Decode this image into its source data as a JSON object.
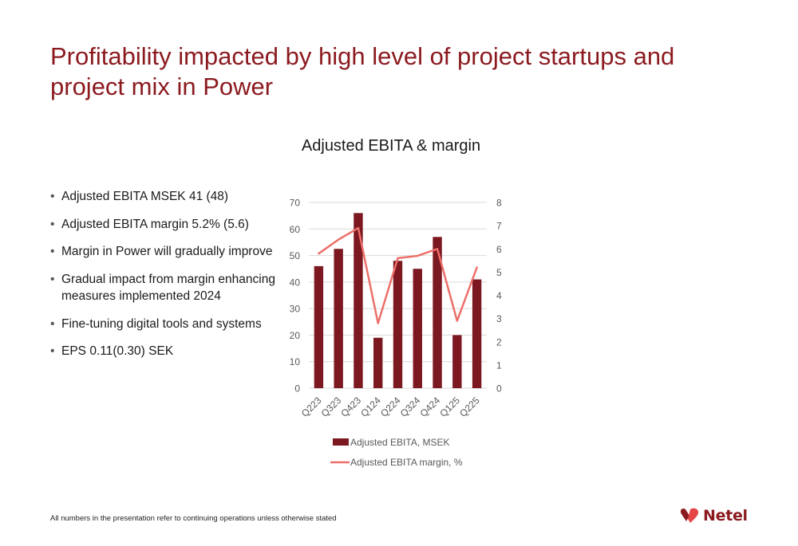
{
  "title": "Profitability impacted by high level of project startups and project mix in Power",
  "bullets": [
    "Adjusted EBITA MSEK 41 (48)",
    "Adjusted EBITA margin 5.2% (5.6)",
    "Margin in Power will gradually improve",
    "Gradual impact from margin enhancing measures implemented 2024",
    "Fine-tuning digital tools and systems",
    "EPS 0.11(0.30) SEK"
  ],
  "footer": "All numbers in the presentation refer to continuing operations unless otherwise stated",
  "logo": {
    "text": "Netel",
    "icon": "netel-heart-logo-icon"
  },
  "colors": {
    "brand": "#8b1a1f",
    "bar": "#7b1820",
    "line": "#ec6f6a",
    "grid": "#d9d9d9"
  },
  "chart_data": {
    "type": "bar",
    "title": "Adjusted EBITA & margin",
    "categories": [
      "Q223",
      "Q323",
      "Q423",
      "Q124",
      "Q224",
      "Q324",
      "Q424",
      "Q125",
      "Q225"
    ],
    "series": [
      {
        "name": "Adjusted EBITA, MSEK",
        "type": "bar",
        "axis": "left",
        "values": [
          46,
          52.5,
          66,
          19,
          48,
          45,
          57,
          20,
          41
        ]
      },
      {
        "name": "Adjusted EBITA margin, %",
        "type": "line",
        "axis": "right",
        "values": [
          5.8,
          6.4,
          6.9,
          2.8,
          5.6,
          5.7,
          6.0,
          2.9,
          5.2
        ]
      }
    ],
    "ylim": [
      0,
      70
    ],
    "yticks": [
      0,
      10,
      20,
      30,
      40,
      50,
      60,
      70
    ],
    "y2lim": [
      0,
      8
    ],
    "y2ticks": [
      0,
      1,
      2,
      3,
      4,
      5,
      6,
      7,
      8
    ],
    "grid": true,
    "legend": "bottom"
  }
}
